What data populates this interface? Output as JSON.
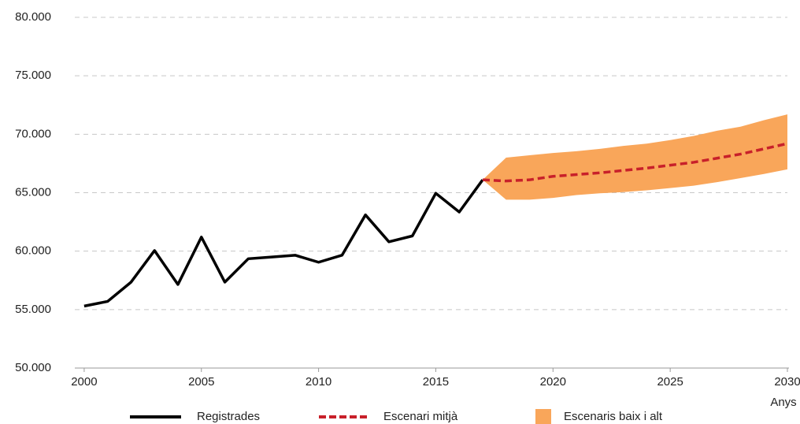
{
  "chart_data": {
    "type": "line",
    "x_label": "Anys",
    "xlim": [
      1999.6,
      2030
    ],
    "xticks": [
      2000,
      2005,
      2010,
      2015,
      2020,
      2025,
      2030
    ],
    "ylim": [
      50000,
      80000
    ],
    "yticks": [
      {
        "value": 50000,
        "label": "50.000"
      },
      {
        "value": 55000,
        "label": "55.000"
      },
      {
        "value": 60000,
        "label": "60.000"
      },
      {
        "value": 65000,
        "label": "65.000"
      },
      {
        "value": 70000,
        "label": "70.000"
      },
      {
        "value": 75000,
        "label": "75.000"
      },
      {
        "value": 80000,
        "label": "80.000"
      }
    ],
    "grid": true,
    "legend": "bottom",
    "series": [
      {
        "name": "Registrades",
        "color": "#000000",
        "style": "solid",
        "x": [
          2000,
          2001,
          2002,
          2003,
          2004,
          2005,
          2006,
          2007,
          2008,
          2009,
          2010,
          2011,
          2012,
          2013,
          2014,
          2015,
          2016,
          2017
        ],
        "values": [
          55300,
          55700,
          57350,
          60050,
          57150,
          61200,
          57350,
          59350,
          59500,
          59650,
          59050,
          59650,
          63100,
          60800,
          61300,
          64950,
          63350,
          66100
        ]
      },
      {
        "name": "Escenari mitjà",
        "color": "#c8202a",
        "style": "dashed",
        "x": [
          2017,
          2018,
          2019,
          2020,
          2021,
          2022,
          2023,
          2024,
          2025,
          2026,
          2027,
          2028,
          2029,
          2030
        ],
        "values": [
          66100,
          66000,
          66100,
          66400,
          66550,
          66700,
          66900,
          67100,
          67350,
          67600,
          67950,
          68300,
          68750,
          69200
        ]
      },
      {
        "name": "Escenaris baix i alt",
        "color": "#f9a65a",
        "style": "band",
        "x": [
          2017,
          2018,
          2019,
          2020,
          2021,
          2022,
          2023,
          2024,
          2025,
          2026,
          2027,
          2028,
          2029,
          2030
        ],
        "low": [
          66100,
          64400,
          64400,
          64550,
          64800,
          64950,
          65050,
          65200,
          65400,
          65600,
          65900,
          66250,
          66600,
          67000
        ],
        "high": [
          66100,
          68000,
          68200,
          68400,
          68550,
          68750,
          69000,
          69200,
          69500,
          69850,
          70300,
          70650,
          71200,
          71700
        ]
      }
    ]
  }
}
